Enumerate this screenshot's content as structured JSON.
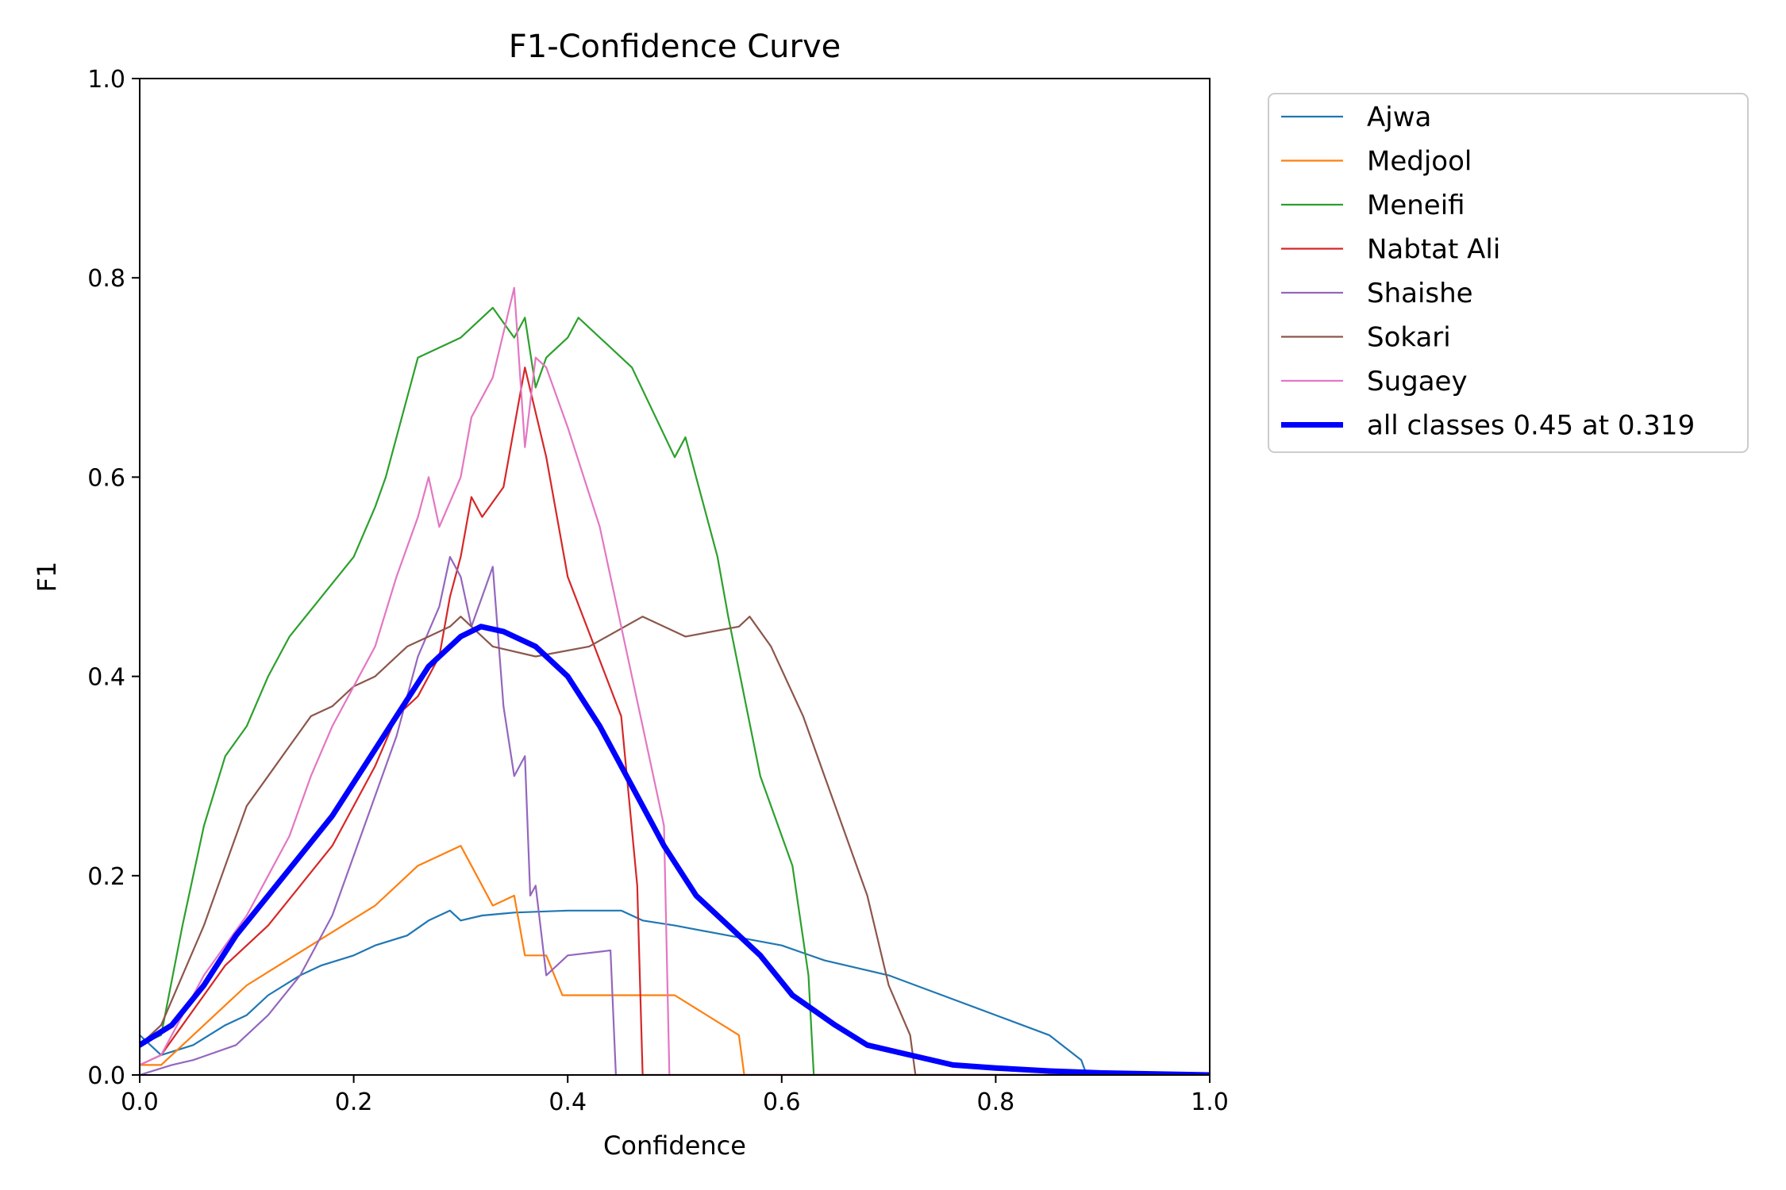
{
  "chart_data": {
    "type": "line",
    "title": "F1-Confidence Curve",
    "xlabel": "Confidence",
    "ylabel": "F1",
    "xlim": [
      0,
      1
    ],
    "ylim": [
      0,
      1
    ],
    "xticks": [
      "0.0",
      "0.2",
      "0.4",
      "0.6",
      "0.8",
      "1.0"
    ],
    "yticks": [
      "0.0",
      "0.2",
      "0.4",
      "0.6",
      "0.8",
      "1.0"
    ],
    "grid": false,
    "legend_position": "outside-top-right",
    "series": [
      {
        "name": "Ajwa",
        "color": "#1f77b4",
        "width": "thin",
        "x": [
          0,
          0.02,
          0.05,
          0.08,
          0.1,
          0.12,
          0.15,
          0.17,
          0.2,
          0.22,
          0.25,
          0.27,
          0.29,
          0.3,
          0.32,
          0.35,
          0.4,
          0.45,
          0.47,
          0.5,
          0.55,
          0.6,
          0.64,
          0.7,
          0.75,
          0.8,
          0.85,
          0.88,
          0.885,
          1.0
        ],
        "y": [
          0.04,
          0.02,
          0.03,
          0.05,
          0.06,
          0.08,
          0.1,
          0.11,
          0.12,
          0.13,
          0.14,
          0.155,
          0.165,
          0.155,
          0.16,
          0.163,
          0.165,
          0.165,
          0.155,
          0.15,
          0.14,
          0.13,
          0.115,
          0.1,
          0.08,
          0.06,
          0.04,
          0.015,
          0.0,
          0.0
        ]
      },
      {
        "name": "Medjool",
        "color": "#ff7f0e",
        "width": "thin",
        "x": [
          0,
          0.02,
          0.05,
          0.08,
          0.1,
          0.13,
          0.16,
          0.19,
          0.22,
          0.24,
          0.26,
          0.28,
          0.3,
          0.31,
          0.33,
          0.35,
          0.36,
          0.38,
          0.395,
          0.5,
          0.56,
          0.565,
          1.0
        ],
        "y": [
          0.01,
          0.01,
          0.04,
          0.07,
          0.09,
          0.11,
          0.13,
          0.15,
          0.17,
          0.19,
          0.21,
          0.22,
          0.23,
          0.21,
          0.17,
          0.18,
          0.12,
          0.12,
          0.08,
          0.08,
          0.04,
          0.0,
          0.0
        ]
      },
      {
        "name": "Meneifi",
        "color": "#2ca02c",
        "width": "thin",
        "x": [
          0,
          0.02,
          0.04,
          0.06,
          0.08,
          0.1,
          0.12,
          0.14,
          0.17,
          0.2,
          0.22,
          0.23,
          0.25,
          0.26,
          0.3,
          0.33,
          0.35,
          0.36,
          0.37,
          0.38,
          0.4,
          0.41,
          0.46,
          0.5,
          0.51,
          0.54,
          0.55,
          0.58,
          0.61,
          0.625,
          0.63,
          1.0
        ],
        "y": [
          0.03,
          0.04,
          0.15,
          0.25,
          0.32,
          0.35,
          0.4,
          0.44,
          0.48,
          0.52,
          0.57,
          0.6,
          0.68,
          0.72,
          0.74,
          0.77,
          0.74,
          0.76,
          0.69,
          0.72,
          0.74,
          0.76,
          0.71,
          0.62,
          0.64,
          0.52,
          0.46,
          0.3,
          0.21,
          0.1,
          0.0,
          0.0
        ]
      },
      {
        "name": "Nabtat Ali",
        "color": "#d62728",
        "width": "thin",
        "x": [
          0,
          0.02,
          0.04,
          0.06,
          0.08,
          0.1,
          0.12,
          0.15,
          0.18,
          0.2,
          0.22,
          0.24,
          0.26,
          0.28,
          0.29,
          0.3,
          0.31,
          0.32,
          0.34,
          0.36,
          0.38,
          0.4,
          0.45,
          0.465,
          0.47,
          1.0
        ],
        "y": [
          0.01,
          0.02,
          0.05,
          0.08,
          0.11,
          0.13,
          0.15,
          0.19,
          0.23,
          0.27,
          0.31,
          0.36,
          0.38,
          0.42,
          0.48,
          0.52,
          0.58,
          0.56,
          0.59,
          0.71,
          0.62,
          0.5,
          0.36,
          0.19,
          0.0,
          0.0
        ]
      },
      {
        "name": "Shaishe",
        "color": "#9467bd",
        "width": "thin",
        "x": [
          0,
          0.03,
          0.05,
          0.09,
          0.12,
          0.15,
          0.18,
          0.21,
          0.24,
          0.26,
          0.28,
          0.29,
          0.3,
          0.31,
          0.32,
          0.33,
          0.34,
          0.35,
          0.36,
          0.365,
          0.37,
          0.38,
          0.4,
          0.44,
          0.445,
          1.0
        ],
        "y": [
          0.0,
          0.01,
          0.015,
          0.03,
          0.06,
          0.1,
          0.16,
          0.25,
          0.34,
          0.42,
          0.47,
          0.52,
          0.5,
          0.45,
          0.48,
          0.51,
          0.37,
          0.3,
          0.32,
          0.18,
          0.19,
          0.1,
          0.12,
          0.125,
          0.0,
          0.0
        ]
      },
      {
        "name": "Sokari",
        "color": "#8c564b",
        "width": "thin",
        "x": [
          0,
          0.02,
          0.04,
          0.06,
          0.08,
          0.1,
          0.12,
          0.14,
          0.16,
          0.18,
          0.2,
          0.22,
          0.25,
          0.27,
          0.29,
          0.3,
          0.33,
          0.37,
          0.42,
          0.47,
          0.51,
          0.56,
          0.57,
          0.59,
          0.62,
          0.64,
          0.66,
          0.68,
          0.7,
          0.72,
          0.725,
          1.0
        ],
        "y": [
          0.03,
          0.05,
          0.1,
          0.15,
          0.21,
          0.27,
          0.3,
          0.33,
          0.36,
          0.37,
          0.39,
          0.4,
          0.43,
          0.44,
          0.45,
          0.46,
          0.43,
          0.42,
          0.43,
          0.46,
          0.44,
          0.45,
          0.46,
          0.43,
          0.36,
          0.3,
          0.24,
          0.18,
          0.09,
          0.04,
          0.0,
          0.0
        ]
      },
      {
        "name": "Sugaey",
        "color": "#e377c2",
        "width": "thin",
        "x": [
          0,
          0.02,
          0.04,
          0.06,
          0.08,
          0.1,
          0.12,
          0.14,
          0.16,
          0.18,
          0.2,
          0.22,
          0.24,
          0.26,
          0.27,
          0.28,
          0.3,
          0.31,
          0.33,
          0.35,
          0.36,
          0.37,
          0.38,
          0.4,
          0.43,
          0.45,
          0.47,
          0.49,
          0.495,
          1.0
        ],
        "y": [
          0.01,
          0.02,
          0.06,
          0.1,
          0.13,
          0.16,
          0.2,
          0.24,
          0.3,
          0.35,
          0.39,
          0.43,
          0.5,
          0.56,
          0.6,
          0.55,
          0.6,
          0.66,
          0.7,
          0.79,
          0.63,
          0.72,
          0.71,
          0.65,
          0.55,
          0.45,
          0.35,
          0.25,
          0.0,
          0.0
        ]
      },
      {
        "name": "all classes 0.45 at 0.319",
        "color": "#0000ff",
        "width": "thick",
        "x": [
          0,
          0.03,
          0.06,
          0.09,
          0.12,
          0.15,
          0.18,
          0.21,
          0.24,
          0.27,
          0.3,
          0.319,
          0.34,
          0.37,
          0.4,
          0.43,
          0.46,
          0.49,
          0.52,
          0.55,
          0.58,
          0.61,
          0.65,
          0.68,
          0.72,
          0.76,
          0.8,
          0.85,
          0.9,
          0.95,
          1.0
        ],
        "y": [
          0.03,
          0.05,
          0.09,
          0.14,
          0.18,
          0.22,
          0.26,
          0.31,
          0.36,
          0.41,
          0.44,
          0.45,
          0.445,
          0.43,
          0.4,
          0.35,
          0.29,
          0.23,
          0.18,
          0.15,
          0.12,
          0.08,
          0.05,
          0.03,
          0.02,
          0.01,
          0.007,
          0.004,
          0.002,
          0.001,
          0.0
        ]
      }
    ]
  }
}
